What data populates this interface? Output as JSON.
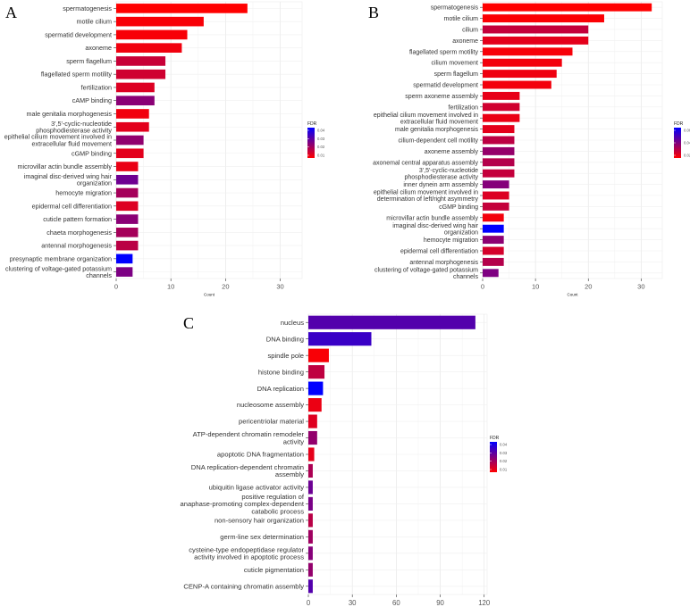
{
  "chart_data": [
    {
      "panel": "A",
      "type": "bar",
      "orientation": "horizontal",
      "xlabel": "Count",
      "xlim": [
        0,
        34
      ],
      "xticks": [
        0,
        10,
        20,
        30
      ],
      "legend": {
        "title": "FDR",
        "position": "right",
        "labels": [
          "0.04",
          "0.03",
          "0.02",
          "0.01"
        ],
        "low_color": "#ff0000",
        "high_color": "#0000ff",
        "min": 0.005,
        "max": 0.042
      },
      "categories": [
        "spermatogenesis",
        "motile cilium",
        "spermatid development",
        "axoneme",
        "sperm flagellum",
        "flagellated sperm motility",
        "fertilization",
        "cAMP binding",
        "male genitalia morphogenesis",
        "3',5'-cyclic-nucleotide\nphosphodiesterase activity",
        "epithelial cilium movement involved in\nextracellular fluid movement",
        "cGMP binding",
        "microvillar actin bundle assembly",
        "imaginal disc-derived wing hair\norganization",
        "hemocyte migration",
        "epidermal cell differentiation",
        "cuticle pattern formation",
        "chaeta morphogenesis",
        "antennal morphogenesis",
        "presynaptic membrane organization",
        "clustering of voltage-gated potassium\nchannels"
      ],
      "values": [
        24,
        16,
        13,
        12,
        9,
        9,
        7,
        7,
        6,
        6,
        5,
        5,
        4,
        4,
        4,
        4,
        4,
        4,
        4,
        3,
        3
      ],
      "fdr": [
        0.005,
        0.006,
        0.006,
        0.007,
        0.013,
        0.012,
        0.01,
        0.022,
        0.007,
        0.009,
        0.021,
        0.009,
        0.008,
        0.026,
        0.018,
        0.01,
        0.022,
        0.018,
        0.015,
        0.042,
        0.024
      ]
    },
    {
      "panel": "B",
      "type": "bar",
      "orientation": "horizontal",
      "xlabel": "Count",
      "xlim": [
        0,
        34
      ],
      "xticks": [
        0,
        10,
        20,
        30
      ],
      "legend": {
        "title": "FDR",
        "position": "right",
        "labels": [
          "0.06",
          "0.04",
          "0.02"
        ],
        "low_color": "#ff0000",
        "high_color": "#0000ff",
        "min": 0.003,
        "max": 0.068
      },
      "categories": [
        "spermatogenesis",
        "motile cilium",
        "cilium",
        "axoneme",
        "flagellated sperm motility",
        "cilium movement",
        "sperm flagellum",
        "spermatid development",
        "sperm axoneme assembly",
        "fertilization",
        "epithelial cilium movement involved in\nextracellular fluid movement",
        "male genitalia morphogenesis",
        "cilium-dependent cell motility",
        "axoneme assembly",
        "axonemal central apparatus assembly",
        "3',5'-cyclic-nucleotide\nphosphodiesterase activity",
        "inner dynein arm assembly",
        "epithelial cilium movement involved in\ndetermination of left/right asymmetry",
        "cGMP binding",
        "microvillar actin bundle assembly",
        "imaginal disc-derived wing hair\norganization",
        "hemocyte migration",
        "epidermal cell differentiation",
        "antennal morphogenesis",
        "clustering of voltage-gated potassium\nchannels"
      ],
      "values": [
        32,
        23,
        20,
        20,
        17,
        15,
        14,
        13,
        7,
        7,
        7,
        6,
        6,
        6,
        6,
        6,
        5,
        5,
        5,
        4,
        4,
        4,
        4,
        4,
        3
      ],
      "fdr": [
        0.003,
        0.004,
        0.018,
        0.01,
        0.005,
        0.006,
        0.007,
        0.006,
        0.009,
        0.015,
        0.008,
        0.01,
        0.02,
        0.03,
        0.022,
        0.018,
        0.034,
        0.012,
        0.018,
        0.006,
        0.068,
        0.032,
        0.014,
        0.022,
        0.036
      ]
    },
    {
      "panel": "C",
      "type": "bar",
      "orientation": "horizontal",
      "xlabel": "Count",
      "xlim": [
        0,
        122
      ],
      "xticks": [
        0,
        30,
        60,
        90,
        120
      ],
      "legend": {
        "title": "FDR",
        "position": "right",
        "labels": [
          "0.04",
          "0.03",
          "0.02",
          "0.01"
        ],
        "low_color": "#ff0000",
        "high_color": "#0000ff",
        "min": 0.003,
        "max": 0.043
      },
      "categories": [
        "nucleus",
        "DNA binding",
        "spindle pole",
        "histone binding",
        "DNA replication",
        "nucleosome assembly",
        "pericentriolar material",
        "ATP-dependent chromatin remodeler\nactivity",
        "apoptotic DNA fragmentation",
        "DNA replication-dependent chromatin\nassembly",
        "ubiquitin ligase activator activity",
        "positive regulation of\nanaphase-promoting complex-dependent\ncatabolic process",
        "non-sensory hair organization",
        "germ-line sex determination",
        "cysteine-type endopeptidase regulator\nactivity involved in apoptotic process",
        "cuticle pigmentation",
        "CENP-A containing chromatin assembly"
      ],
      "values": [
        114,
        43,
        14,
        11,
        10,
        9,
        6,
        6,
        4,
        3,
        3,
        3,
        3,
        3,
        3,
        3,
        3
      ],
      "fdr": [
        0.03,
        0.034,
        0.004,
        0.013,
        0.043,
        0.006,
        0.008,
        0.02,
        0.007,
        0.016,
        0.026,
        0.024,
        0.014,
        0.018,
        0.022,
        0.02,
        0.03
      ]
    }
  ]
}
